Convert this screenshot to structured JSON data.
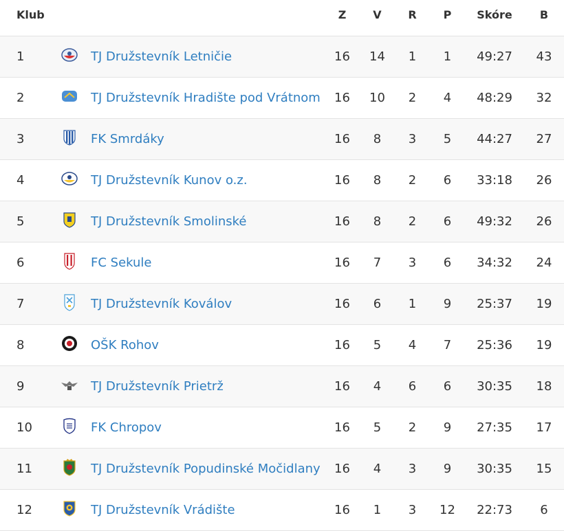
{
  "table": {
    "headers": {
      "club": "Klub",
      "played": "Z",
      "won": "V",
      "drawn": "R",
      "lost": "P",
      "score": "Skóre",
      "points": "B"
    },
    "rows": [
      {
        "pos": "1",
        "name": "TJ Družstevník Letničie",
        "crest": "letnicie-crest-icon",
        "played": "16",
        "won": "14",
        "drawn": "1",
        "lost": "1",
        "score": "49:27",
        "points": "43"
      },
      {
        "pos": "2",
        "name": "TJ Družstevník Hradište pod Vrátnom",
        "crest": "hradiste-crest-icon",
        "played": "16",
        "won": "10",
        "drawn": "2",
        "lost": "4",
        "score": "48:29",
        "points": "32"
      },
      {
        "pos": "3",
        "name": "FK Smrdáky",
        "crest": "smrdaky-crest-icon",
        "played": "16",
        "won": "8",
        "drawn": "3",
        "lost": "5",
        "score": "44:27",
        "points": "27"
      },
      {
        "pos": "4",
        "name": "TJ Družstevník Kunov o.z.",
        "crest": "kunov-crest-icon",
        "played": "16",
        "won": "8",
        "drawn": "2",
        "lost": "6",
        "score": "33:18",
        "points": "26"
      },
      {
        "pos": "5",
        "name": "TJ Družstevník Smolinské",
        "crest": "smolinske-crest-icon",
        "played": "16",
        "won": "8",
        "drawn": "2",
        "lost": "6",
        "score": "49:32",
        "points": "26"
      },
      {
        "pos": "6",
        "name": "FC Sekule",
        "crest": "sekule-crest-icon",
        "played": "16",
        "won": "7",
        "drawn": "3",
        "lost": "6",
        "score": "34:32",
        "points": "24"
      },
      {
        "pos": "7",
        "name": "TJ Družstevník Koválov",
        "crest": "kovalov-crest-icon",
        "played": "16",
        "won": "6",
        "drawn": "1",
        "lost": "9",
        "score": "25:37",
        "points": "19"
      },
      {
        "pos": "8",
        "name": "OŠK Rohov",
        "crest": "rohov-crest-icon",
        "played": "16",
        "won": "5",
        "drawn": "4",
        "lost": "7",
        "score": "25:36",
        "points": "19"
      },
      {
        "pos": "9",
        "name": "TJ Družstevník Prietrž",
        "crest": "prietrz-crest-icon",
        "played": "16",
        "won": "4",
        "drawn": "6",
        "lost": "6",
        "score": "30:35",
        "points": "18"
      },
      {
        "pos": "10",
        "name": "FK Chropov",
        "crest": "chropov-crest-icon",
        "played": "16",
        "won": "5",
        "drawn": "2",
        "lost": "9",
        "score": "27:35",
        "points": "17"
      },
      {
        "pos": "11",
        "name": "TJ Družstevník Popudinské Močidlany",
        "crest": "popudinske-crest-icon",
        "played": "16",
        "won": "4",
        "drawn": "3",
        "lost": "9",
        "score": "30:35",
        "points": "15"
      },
      {
        "pos": "12",
        "name": "TJ Družstevník Vrádište",
        "crest": "vradiste-crest-icon",
        "played": "16",
        "won": "1",
        "drawn": "3",
        "lost": "12",
        "score": "22:73",
        "points": "6"
      }
    ]
  },
  "colors": {
    "link": "#2f7ec0",
    "text": "#333333",
    "row_stripe": "#f8f8f8",
    "border": "#e3e3e3"
  }
}
